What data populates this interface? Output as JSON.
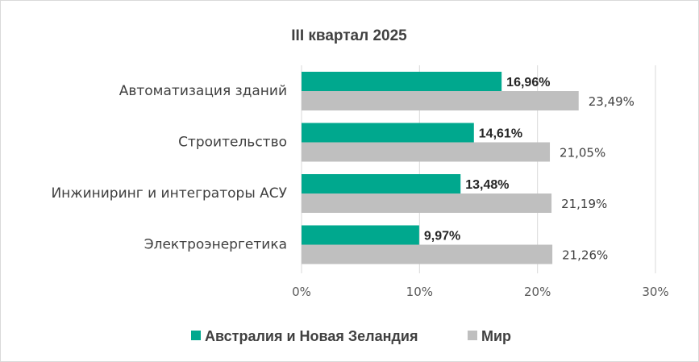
{
  "chart_data": {
    "type": "bar",
    "orientation": "horizontal",
    "title": "III квартал 2025",
    "categories": [
      "Автоматизация зданий",
      "Строительство",
      "Инжиниринг и интеграторы АСУ",
      "Электроэнергетика"
    ],
    "series": [
      {
        "name": "Австралия и Новая Зеландия",
        "color": "#00a88e",
        "values": [
          16.96,
          14.61,
          13.48,
          9.97
        ],
        "labels": [
          "16,96%",
          "14,61%",
          "13,48%",
          "9,97%"
        ]
      },
      {
        "name": "Мир",
        "color": "#bfbfbf",
        "values": [
          23.49,
          21.05,
          21.19,
          21.26
        ],
        "labels": [
          "23,49%",
          "21,05%",
          "21,19%",
          "21,26%"
        ]
      }
    ],
    "xlim": [
      0,
      30
    ],
    "xticks": [
      0,
      10,
      20,
      30
    ],
    "xtick_labels": [
      "0%",
      "10%",
      "20%",
      "30%"
    ],
    "grid": true,
    "legend_position": "bottom"
  }
}
